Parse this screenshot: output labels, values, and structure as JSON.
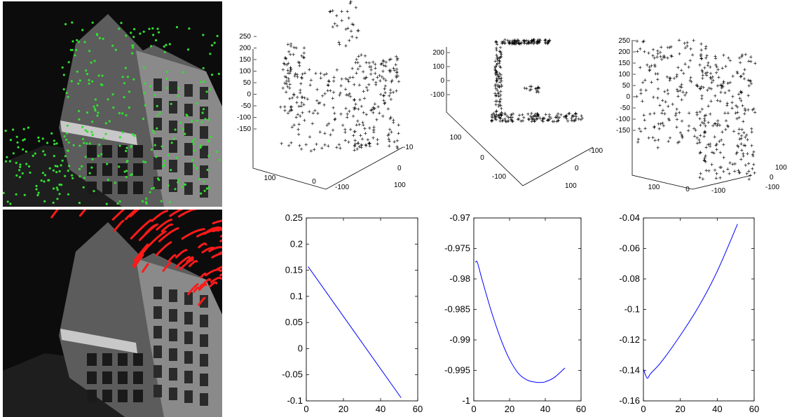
{
  "photos": [
    {
      "kind": "feature-points",
      "marker_color": "#33dd33"
    },
    {
      "kind": "feature-tracks",
      "marker_color": "#ff1a1a"
    }
  ],
  "chart_data": [
    {
      "type": "scatter",
      "projection": "3d",
      "point_color": "#ff0000",
      "z_ticks": [
        "250",
        "200",
        "150",
        "100",
        "50",
        "0",
        "-50",
        "-100",
        "-150"
      ],
      "x_ticks": [
        "100",
        "0",
        "-100"
      ],
      "y_ticks": [
        "-100",
        "0",
        "100"
      ]
    },
    {
      "type": "scatter",
      "projection": "3d",
      "point_color": "#ff0000",
      "z_ticks": [
        "200",
        "100",
        "0",
        "-100"
      ],
      "x_ticks": [
        "100",
        "0",
        "-100"
      ],
      "y_ticks": [
        "-100",
        "0",
        "100"
      ]
    },
    {
      "type": "scatter",
      "projection": "3d",
      "point_color": "#ff0000",
      "z_ticks": [
        "250",
        "200",
        "150",
        "100",
        "50",
        "0",
        "-50",
        "-100",
        "-150"
      ],
      "x_ticks": [
        "100",
        "0",
        "-100"
      ],
      "y_ticks": [
        "100",
        "0",
        "-100"
      ]
    },
    {
      "type": "line",
      "line_color": "#0000ff",
      "xlim": [
        0,
        60
      ],
      "ylim": [
        -0.1,
        0.25
      ],
      "x_ticks": [
        "0",
        "20",
        "40",
        "60"
      ],
      "y_ticks": [
        "0.25",
        "0.2",
        "0.15",
        "0.1",
        "0.05",
        "0",
        "-0.05",
        "-0.1"
      ],
      "x": [
        1,
        51
      ],
      "y": [
        0.157,
        -0.094
      ]
    },
    {
      "type": "line",
      "line_color": "#0000ff",
      "xlim": [
        0,
        60
      ],
      "ylim": [
        -1,
        -0.97
      ],
      "x_ticks": [
        "0",
        "20",
        "40",
        "60"
      ],
      "y_ticks": [
        "-0.97",
        "-0.975",
        "-0.98",
        "-0.985",
        "-0.99",
        "-0.995",
        "-1"
      ],
      "x": [
        1,
        2,
        5,
        10,
        15,
        20,
        25,
        30,
        35,
        38,
        40,
        45,
        51
      ],
      "y": [
        -0.9773,
        -0.9773,
        -0.9805,
        -0.9855,
        -0.9898,
        -0.9932,
        -0.9955,
        -0.9966,
        -0.99695,
        -0.99697,
        -0.99687,
        -0.99617,
        -0.9946
      ]
    },
    {
      "type": "line",
      "line_color": "#0000ff",
      "xlim": [
        0,
        60
      ],
      "ylim": [
        -0.16,
        -0.04
      ],
      "x_ticks": [
        "0",
        "20",
        "40",
        "60"
      ],
      "y_ticks": [
        "-0.04",
        "-0.06",
        "-0.08",
        "-0.1",
        "-0.12",
        "-0.14",
        "-0.16"
      ],
      "x": [
        0,
        2,
        4,
        10,
        20,
        30,
        40,
        51
      ],
      "y": [
        -0.139,
        -0.145,
        -0.142,
        -0.134,
        -0.117,
        -0.098,
        -0.075,
        -0.044
      ]
    }
  ]
}
